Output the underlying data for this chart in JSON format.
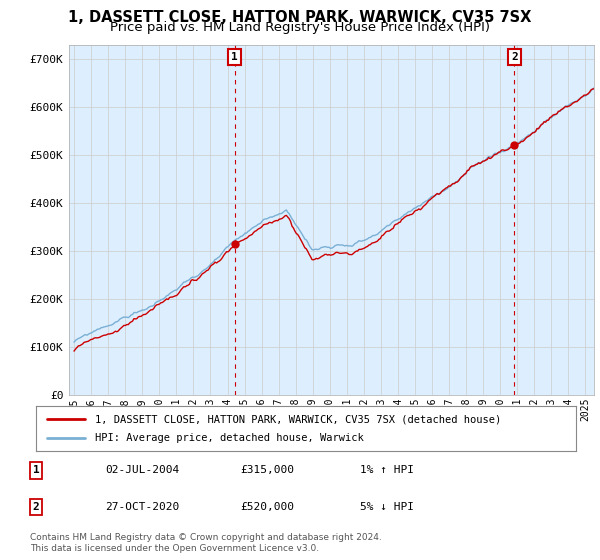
{
  "title": "1, DASSETT CLOSE, HATTON PARK, WARWICK, CV35 7SX",
  "subtitle": "Price paid vs. HM Land Registry's House Price Index (HPI)",
  "ylabel_ticks": [
    "£0",
    "£100K",
    "£200K",
    "£300K",
    "£400K",
    "£500K",
    "£600K",
    "£700K"
  ],
  "ytick_values": [
    0,
    100000,
    200000,
    300000,
    400000,
    500000,
    600000,
    700000
  ],
  "ylim": [
    0,
    730000
  ],
  "xlim_start": 1994.7,
  "xlim_end": 2025.5,
  "hpi_color": "#7ab0d4",
  "price_color": "#cc0000",
  "bg_fill_color": "#ddeeff",
  "sale1_date": 2004.42,
  "sale1_price": 315000,
  "sale2_date": 2020.83,
  "sale2_price": 520000,
  "legend_label1": "1, DASSETT CLOSE, HATTON PARK, WARWICK, CV35 7SX (detached house)",
  "legend_label2": "HPI: Average price, detached house, Warwick",
  "table_row1": [
    "1",
    "02-JUL-2004",
    "£315,000",
    "1% ↑ HPI"
  ],
  "table_row2": [
    "2",
    "27-OCT-2020",
    "£520,000",
    "5% ↓ HPI"
  ],
  "footnote": "Contains HM Land Registry data © Crown copyright and database right 2024.\nThis data is licensed under the Open Government Licence v3.0.",
  "bg_color": "#ffffff",
  "grid_color": "#cccccc",
  "title_fontsize": 10.5,
  "subtitle_fontsize": 9.5
}
